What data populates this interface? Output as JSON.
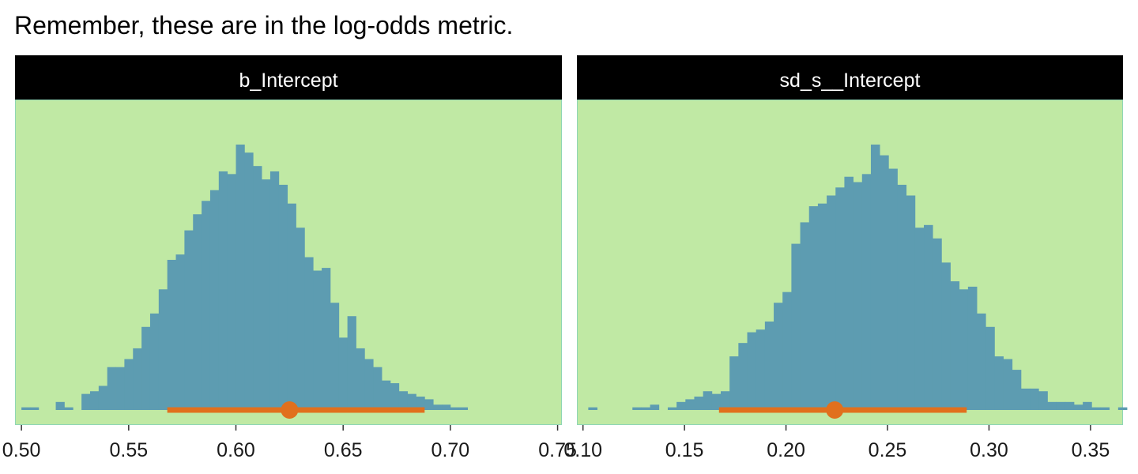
{
  "title": "Remember, these are in the log-odds metric.",
  "colors": {
    "panel_background": "#c0e9a4",
    "panel_border": "#8fd6b4",
    "strip_background": "#000000",
    "strip_text": "#ffffff",
    "histogram_fill": "#5d9cb1",
    "interval": "#e1701d"
  },
  "chart_data": [
    {
      "type": "histogram",
      "facet_label": "b_Intercept",
      "xlim": [
        0.497,
        0.752
      ],
      "x_ticks": [
        0.5,
        0.55,
        0.6,
        0.65,
        0.7,
        0.75
      ],
      "x_tick_labels": [
        "0.50",
        "0.55",
        "0.60",
        "0.65",
        "0.70",
        "0.75"
      ],
      "bin_start": 0.5,
      "bin_width": 0.004,
      "counts": [
        1,
        1,
        0,
        0,
        3,
        1,
        0,
        6,
        7,
        9,
        16,
        16,
        19,
        23,
        31,
        36,
        45,
        56,
        58,
        67,
        73,
        78,
        82,
        89,
        88,
        99,
        96,
        91,
        86,
        89,
        84,
        77,
        68,
        57,
        52,
        53,
        40,
        27,
        35,
        23,
        19,
        16,
        11,
        10,
        7,
        6,
        5,
        4,
        2,
        2,
        1,
        1,
        0,
        0
      ],
      "point_estimate": 0.625,
      "interval": [
        0.568,
        0.688
      ],
      "ylabel": "",
      "y_axis_shown": false
    },
    {
      "type": "histogram",
      "facet_label": "sd_s__Intercept",
      "xlim": [
        0.097,
        0.366
      ],
      "x_ticks": [
        0.1,
        0.15,
        0.2,
        0.25,
        0.3,
        0.35
      ],
      "x_tick_labels": [
        "0.10",
        "0.15",
        "0.20",
        "0.25",
        "0.30",
        "0.35"
      ],
      "bin_start": 0.1026,
      "bin_width": 0.00435,
      "counts": [
        1,
        0,
        0,
        0,
        0,
        1,
        1,
        2,
        0,
        1,
        3,
        4,
        5,
        7,
        6,
        7,
        20,
        25,
        29,
        30,
        33,
        40,
        44,
        62,
        70,
        76,
        77,
        80,
        83,
        87,
        85,
        88,
        99,
        95,
        90,
        84,
        80,
        68,
        69,
        64,
        55,
        48,
        45,
        46,
        36,
        31,
        20,
        19,
        15,
        8,
        8,
        7,
        3,
        3,
        3,
        2,
        3,
        1,
        1,
        0,
        1,
        0,
        0
      ],
      "point_estimate": 0.224,
      "interval": [
        0.167,
        0.289
      ],
      "ylabel": "",
      "y_axis_shown": false
    }
  ]
}
